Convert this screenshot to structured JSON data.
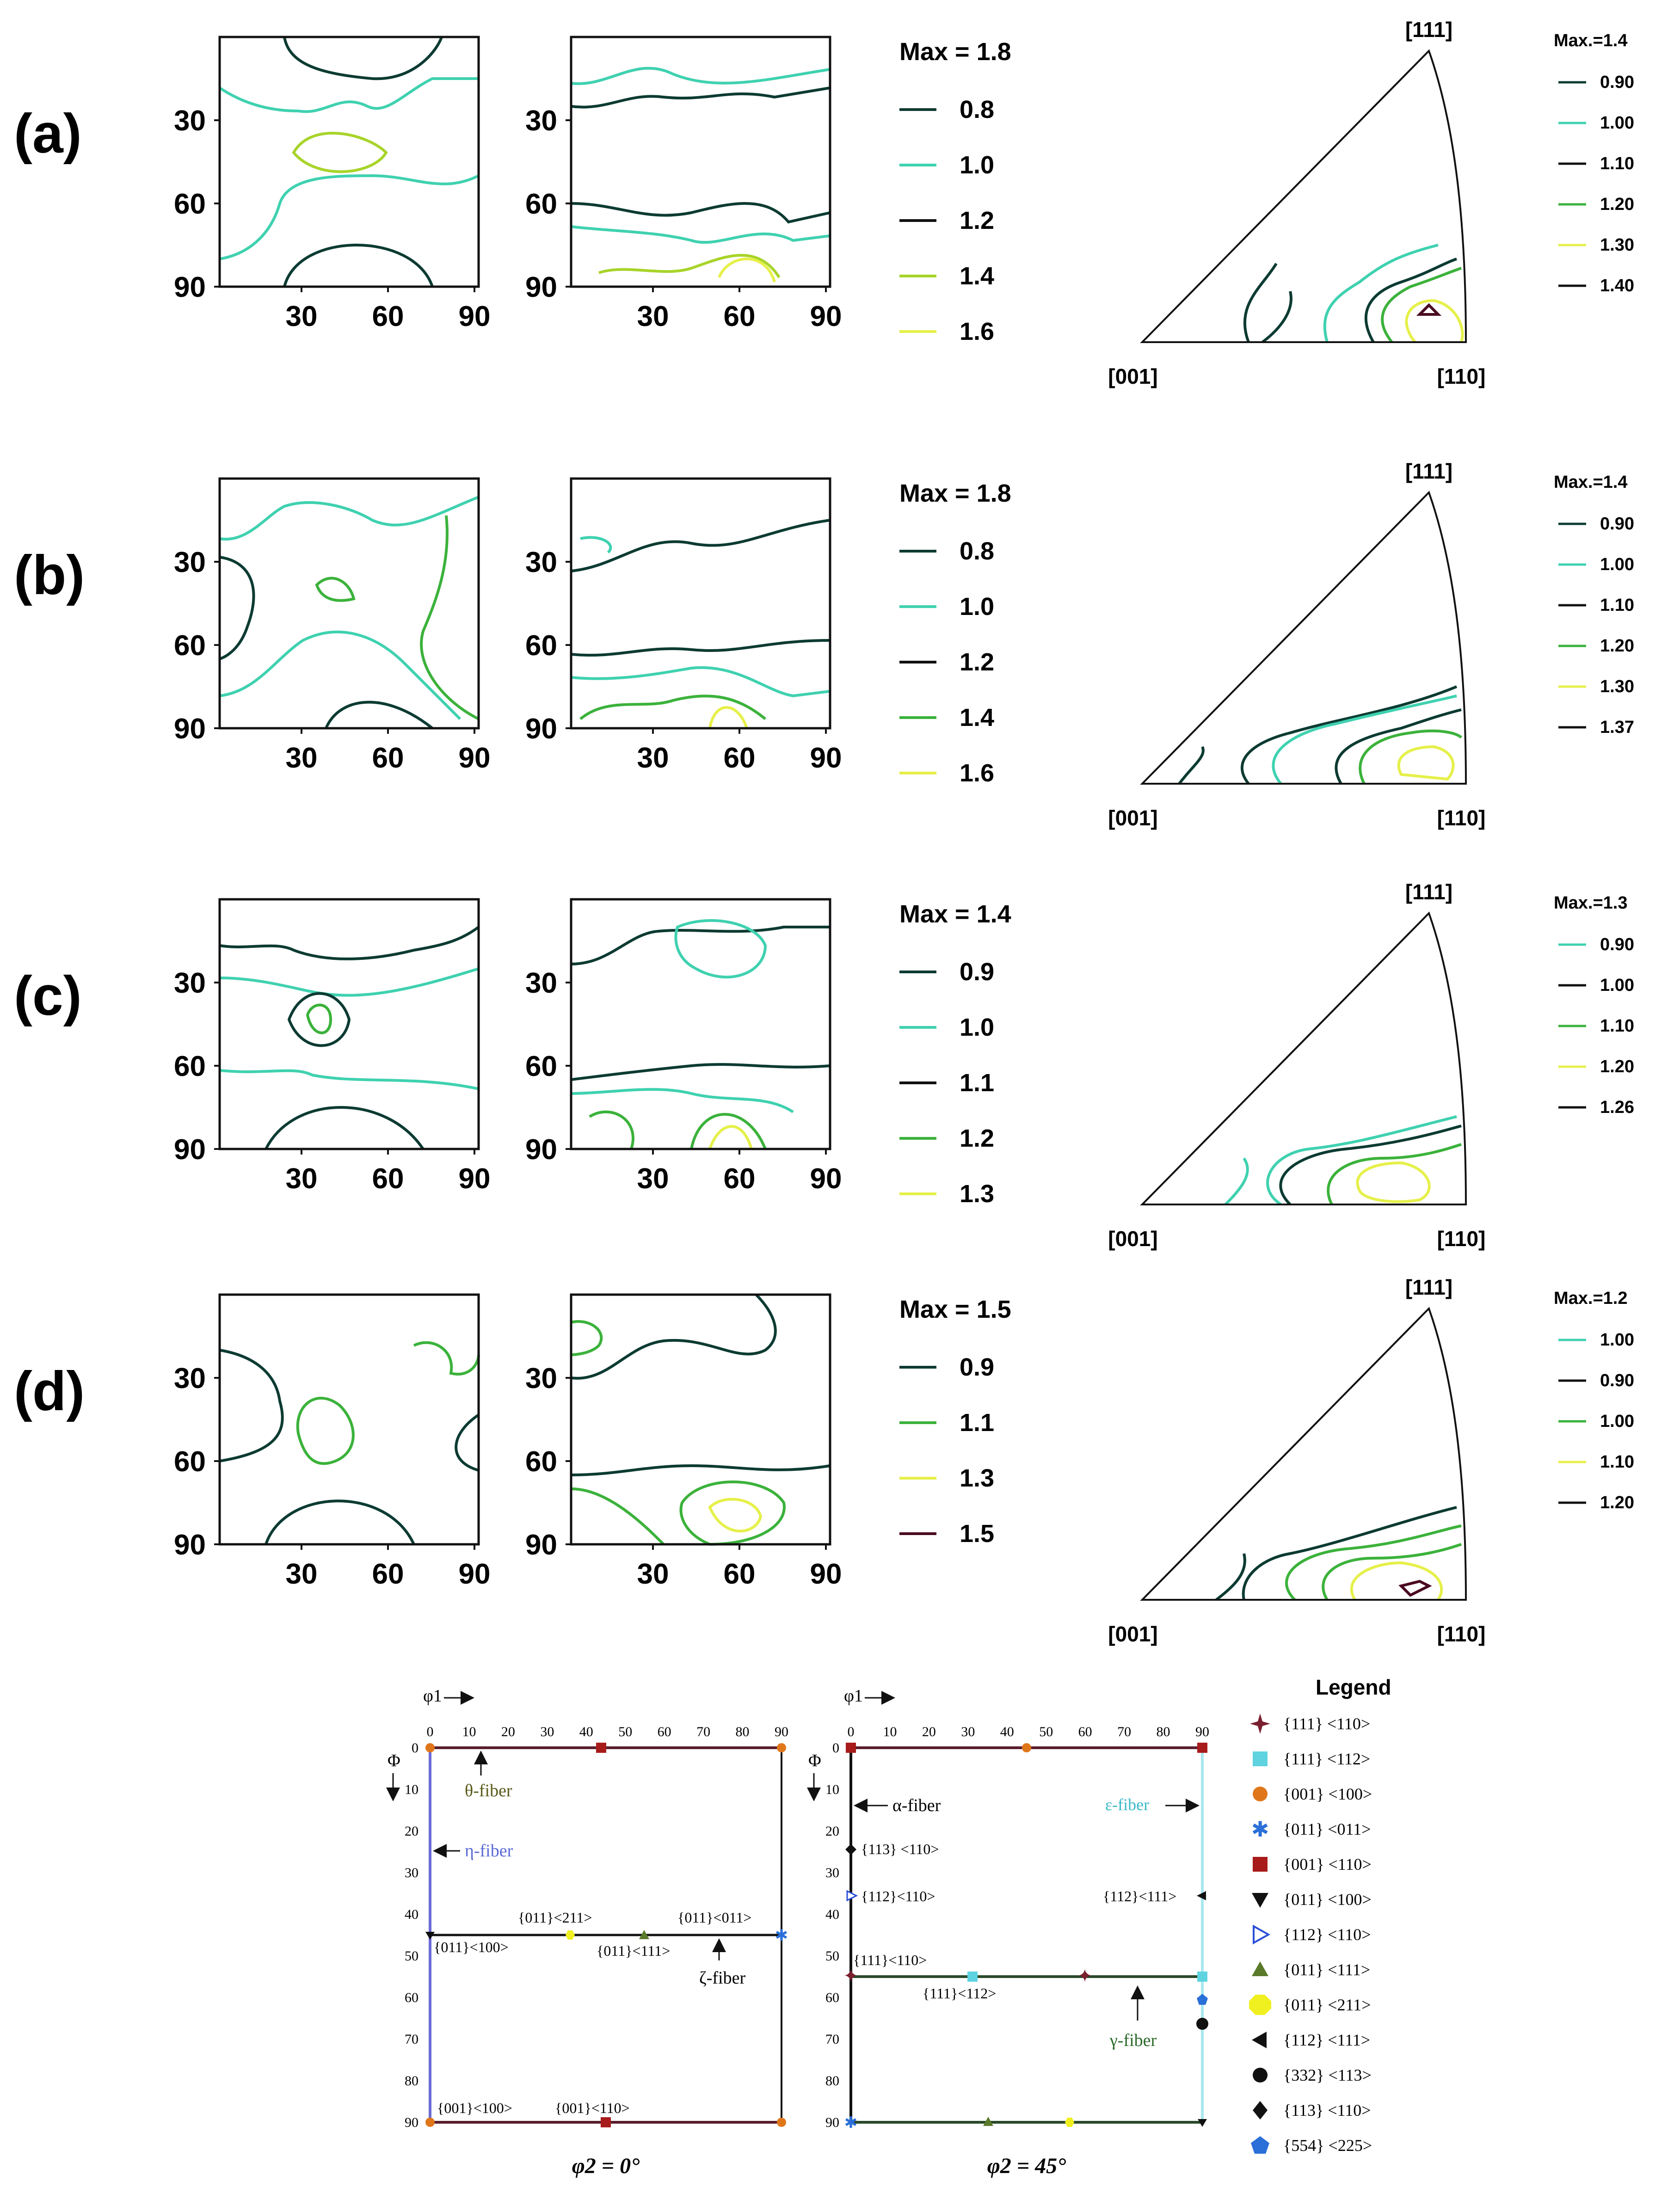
{
  "colors": {
    "dark": "#0c3b32",
    "cyan": "#3fd1b0",
    "green": "#3bb23b",
    "yellowgreen": "#a8d42a",
    "yellow": "#e6f04a",
    "maroon": "#4a0a22",
    "black": "#111111",
    "blue_fiber": "#6b6bd6"
  },
  "rows": [
    {
      "label": "(a)",
      "odf": {
        "yticks": [
          "30",
          "60",
          "90"
        ],
        "xticks": [
          "30",
          "60",
          "90"
        ]
      },
      "legend": {
        "max": "Max = 1.8",
        "items": [
          {
            "value": "0.8",
            "color": "dark"
          },
          {
            "value": "1.0",
            "color": "cyan"
          },
          {
            "value": "1.2",
            "color": "black"
          },
          {
            "value": "1.4",
            "color": "yellowgreen"
          },
          {
            "value": "1.6",
            "color": "yellow"
          }
        ]
      },
      "ipf": {
        "top": "[111]",
        "left": "[001]",
        "right": "[110]"
      },
      "ipf_legend": {
        "max": "Max.=1.4",
        "items": [
          {
            "value": "0.90",
            "color": "dark"
          },
          {
            "value": "1.00",
            "color": "cyan"
          },
          {
            "value": "1.10",
            "color": "black"
          },
          {
            "value": "1.20",
            "color": "green"
          },
          {
            "value": "1.30",
            "color": "yellow"
          },
          {
            "value": "1.40",
            "color": "black"
          }
        ]
      }
    },
    {
      "label": "(b)",
      "odf": {
        "yticks": [
          "30",
          "60",
          "90"
        ],
        "xticks": [
          "30",
          "60",
          "90"
        ]
      },
      "legend": {
        "max": "Max = 1.8",
        "items": [
          {
            "value": "0.8",
            "color": "dark"
          },
          {
            "value": "1.0",
            "color": "cyan"
          },
          {
            "value": "1.2",
            "color": "black"
          },
          {
            "value": "1.4",
            "color": "green"
          },
          {
            "value": "1.6",
            "color": "yellow"
          }
        ]
      },
      "ipf": {
        "top": "[111]",
        "left": "[001]",
        "right": "[110]"
      },
      "ipf_legend": {
        "max": "Max.=1.4",
        "items": [
          {
            "value": "0.90",
            "color": "dark"
          },
          {
            "value": "1.00",
            "color": "cyan"
          },
          {
            "value": "1.10",
            "color": "black"
          },
          {
            "value": "1.20",
            "color": "green"
          },
          {
            "value": "1.30",
            "color": "yellow"
          },
          {
            "value": "1.37",
            "color": "black"
          }
        ]
      }
    },
    {
      "label": "(c)",
      "odf": {
        "yticks": [
          "30",
          "60",
          "90"
        ],
        "xticks": [
          "30",
          "60",
          "90"
        ]
      },
      "legend": {
        "max": "Max = 1.4",
        "items": [
          {
            "value": "0.9",
            "color": "dark"
          },
          {
            "value": "1.0",
            "color": "cyan"
          },
          {
            "value": "1.1",
            "color": "black"
          },
          {
            "value": "1.2",
            "color": "green"
          },
          {
            "value": "1.3",
            "color": "yellow"
          }
        ]
      },
      "ipf": {
        "top": "[111]",
        "left": "[001]",
        "right": "[110]"
      },
      "ipf_legend": {
        "max": "Max.=1.3",
        "items": [
          {
            "value": "0.90",
            "color": "cyan"
          },
          {
            "value": "1.00",
            "color": "black"
          },
          {
            "value": "1.10",
            "color": "green"
          },
          {
            "value": "1.20",
            "color": "yellow"
          },
          {
            "value": "1.26",
            "color": "black"
          }
        ]
      }
    },
    {
      "label": "(d)",
      "odf": {
        "yticks": [
          "30",
          "60",
          "90"
        ],
        "xticks": [
          "30",
          "60",
          "90"
        ]
      },
      "legend": {
        "max": "Max = 1.5",
        "items": [
          {
            "value": "0.9",
            "color": "dark"
          },
          {
            "value": "1.1",
            "color": "green"
          },
          {
            "value": "1.3",
            "color": "yellow"
          },
          {
            "value": "1.5",
            "color": "maroon"
          }
        ]
      },
      "ipf": {
        "top": "[111]",
        "left": "[001]",
        "right": "[110]"
      },
      "ipf_legend": {
        "max": "Max.=1.2",
        "items": [
          {
            "value": "1.00",
            "color": "cyan"
          },
          {
            "value": "0.90",
            "color": "black"
          },
          {
            "value": "1.00",
            "color": "green"
          },
          {
            "value": "1.10",
            "color": "yellow"
          },
          {
            "value": "1.20",
            "color": "black"
          }
        ]
      }
    }
  ],
  "key_charts": {
    "phi1_label": "φ1",
    "Phi_label": "Φ",
    "ticks": [
      "0",
      "10",
      "20",
      "30",
      "40",
      "50",
      "60",
      "70",
      "80",
      "90"
    ],
    "left": {
      "caption": "φ2 = 0°",
      "annotations": {
        "theta_fiber": "θ-fiber",
        "eta_fiber": "η-fiber",
        "zeta_fiber": "ζ-fiber",
        "l1": "{011}<211>",
        "l2": "{011}<011>",
        "l3": "{011}<100>",
        "l4": "{011}<111>",
        "l5": "{001}<100>",
        "l6": "{001}<110>"
      }
    },
    "right": {
      "caption": "φ2 = 45°",
      "annotations": {
        "alpha_fiber": "α-fiber",
        "epsilon_fiber": "ε-fiber",
        "gamma_fiber": "γ-fiber",
        "r1": "{113} <110>",
        "r2": "{112}<110>",
        "r3": "{112}<111>",
        "r4": "{111}<110>",
        "r5": "{111}<112>"
      }
    }
  },
  "legend": {
    "title": "Legend",
    "items": [
      {
        "icon": "four-point-star-icon",
        "color": "#7a1f2e",
        "label": "{111} <110>"
      },
      {
        "icon": "square-icon",
        "color": "#5fd3e0",
        "label": "{111} <112>"
      },
      {
        "icon": "circle-icon",
        "color": "#e0761a",
        "label": "{001} <100>"
      },
      {
        "icon": "star-icon",
        "color": "#2b6fd8",
        "label": "{011} <011>"
      },
      {
        "icon": "square-icon",
        "color": "#a81b1b",
        "label": "{001} <110>"
      },
      {
        "icon": "down-triangle-icon",
        "color": "#111111",
        "label": "{011} <100>"
      },
      {
        "icon": "right-triangle-outline-icon",
        "color": "#2b4fd8",
        "label": "{112} <110>"
      },
      {
        "icon": "up-triangle-icon",
        "color": "#5a7a2a",
        "label": "{011} <111>"
      },
      {
        "icon": "octagon-icon",
        "color": "#f0f020",
        "label": "{011} <211>"
      },
      {
        "icon": "left-triangle-icon",
        "color": "#111111",
        "label": "{112} <111>"
      },
      {
        "icon": "circle-icon",
        "color": "#111111",
        "label": "{332} <113>"
      },
      {
        "icon": "diamond-icon",
        "color": "#111111",
        "label": "{113} <110>"
      },
      {
        "icon": "pentagon-icon",
        "color": "#2b6fd8",
        "label": "{554} <225>"
      }
    ]
  }
}
